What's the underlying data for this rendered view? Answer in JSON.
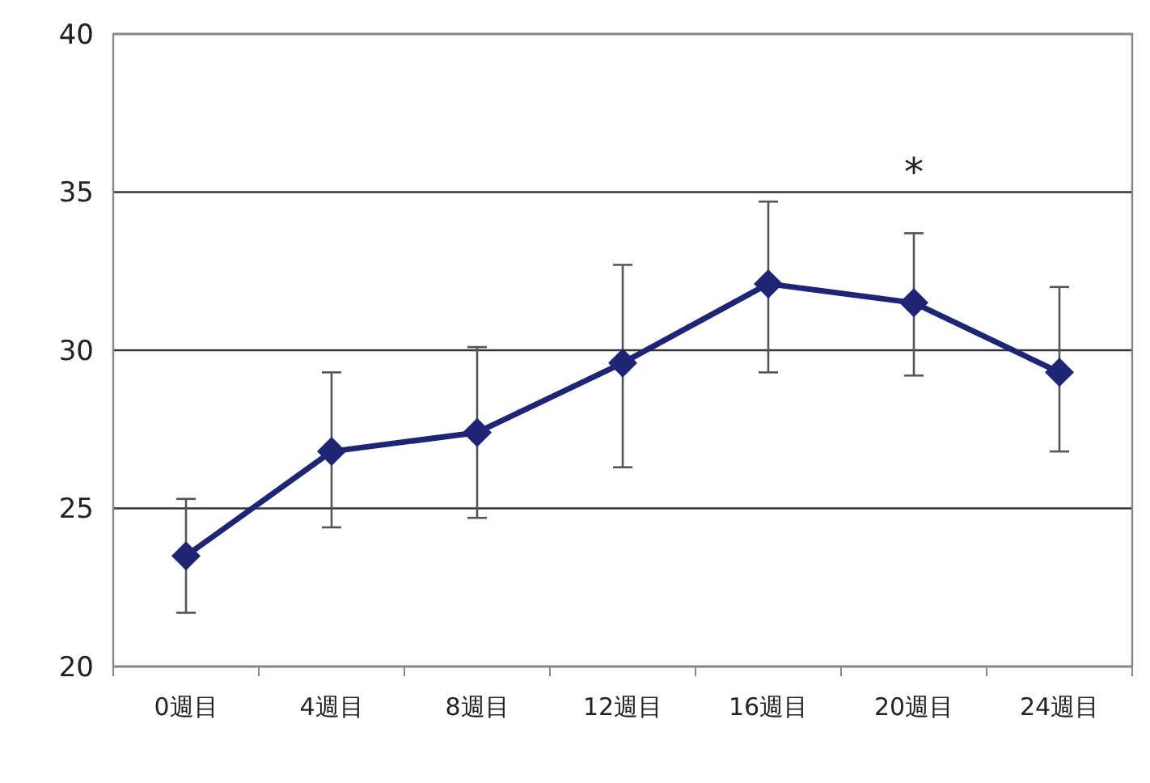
{
  "chart_data": {
    "type": "line",
    "categories": [
      "0週目",
      "4週目",
      "8週目",
      "12週目",
      "16週目",
      "20週目",
      "24週目"
    ],
    "series": [
      {
        "color": "#1f2575",
        "values": [
          23.5,
          26.8,
          27.4,
          29.6,
          32.1,
          31.5,
          29.3
        ],
        "errors": [
          [
            21.7,
            25.3
          ],
          [
            24.4,
            29.3
          ],
          [
            24.7,
            30.1
          ],
          [
            26.3,
            32.7
          ],
          [
            29.3,
            34.7
          ],
          [
            29.2,
            33.7
          ],
          [
            26.8,
            32.0
          ]
        ]
      }
    ],
    "ylim": [
      20,
      40
    ],
    "yticks": [
      20,
      25,
      30,
      35,
      40
    ],
    "grid": "y",
    "marker": "diamond",
    "line_style": "solid",
    "annotations": [
      "*"
    ]
  }
}
